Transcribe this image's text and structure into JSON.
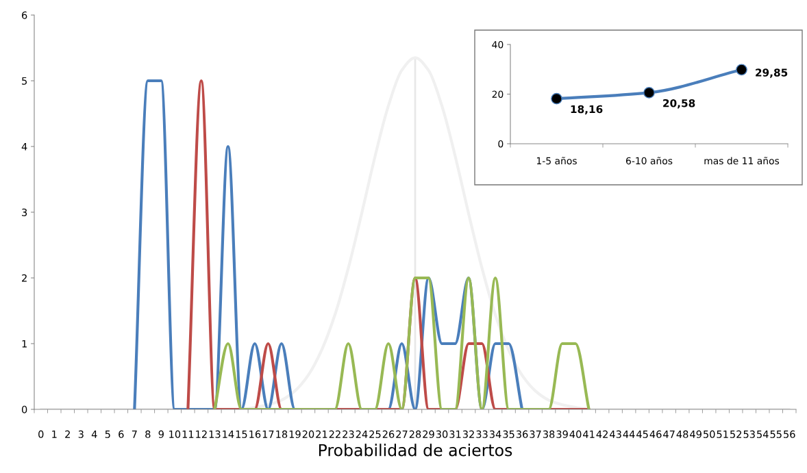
{
  "chart_data": [
    {
      "type": "line",
      "xlabel": "Probabilidad de aciertos",
      "categories": [
        "0",
        "1",
        "2",
        "3",
        "4",
        "5",
        "6",
        "7",
        "8",
        "9",
        "10",
        "11",
        "12",
        "13",
        "14",
        "15",
        "16",
        "17",
        "18",
        "19",
        "20",
        "21",
        "22",
        "23",
        "24",
        "25",
        "26",
        "27",
        "28",
        "29",
        "30",
        "31",
        "32",
        "33",
        "34",
        "35",
        "36",
        "37",
        "38",
        "39",
        "40",
        "41",
        "42",
        "43",
        "44",
        "45",
        "46",
        "47",
        "48",
        "49",
        "50",
        "51",
        "52",
        "53",
        "54",
        "55",
        "56"
      ],
      "ylim": [
        0,
        6
      ],
      "yticks": [
        0,
        1,
        2,
        3,
        4,
        5,
        6
      ],
      "grid": false,
      "legend": false,
      "series": [
        {
          "color": "#f0f0f0",
          "values": [
            0,
            0,
            0,
            0,
            0,
            0,
            0,
            0,
            0,
            0,
            0,
            0,
            0,
            0,
            0,
            0,
            0.03,
            0.07,
            0.14,
            0.28,
            0.52,
            0.9,
            1.44,
            2.15,
            2.98,
            3.85,
            4.62,
            5.16,
            5.35,
            5.16,
            4.62,
            3.85,
            2.98,
            2.15,
            1.44,
            0.9,
            0.52,
            0.28,
            0.14,
            0.07,
            0.03,
            0,
            0,
            0,
            0,
            0,
            0,
            0,
            0,
            0,
            0,
            0,
            0,
            0,
            0,
            0,
            0
          ]
        },
        {
          "color": "#4a7ebb",
          "values": [
            null,
            null,
            null,
            null,
            null,
            null,
            null,
            0,
            5,
            5,
            0,
            0,
            0,
            0,
            4,
            0,
            1,
            0,
            1,
            0,
            0,
            0,
            0,
            0,
            0,
            0,
            0,
            1,
            0,
            2,
            1,
            1,
            2,
            0,
            1,
            1,
            0,
            null,
            null,
            null,
            null,
            null,
            null,
            null,
            null,
            null,
            null,
            null,
            null,
            null,
            null,
            null,
            null,
            null,
            null,
            null,
            null
          ]
        },
        {
          "color": "#be4b48",
          "values": [
            null,
            null,
            null,
            null,
            null,
            null,
            null,
            null,
            null,
            null,
            null,
            0,
            5,
            0,
            0,
            0,
            0,
            1,
            0,
            0,
            0,
            0,
            0,
            0,
            0,
            0,
            0,
            0,
            2,
            0,
            0,
            0,
            1,
            1,
            0,
            0,
            0,
            0,
            0,
            0,
            0,
            0,
            null,
            null,
            null,
            null,
            null,
            null,
            null,
            null,
            null,
            null,
            null,
            null,
            null,
            null,
            null
          ]
        },
        {
          "color": "#98b954",
          "values": [
            null,
            null,
            null,
            null,
            null,
            null,
            null,
            null,
            null,
            null,
            null,
            null,
            null,
            0,
            1,
            0,
            0,
            0,
            0,
            0,
            0,
            0,
            0,
            1,
            0,
            0,
            1,
            0,
            2,
            2,
            0,
            0,
            2,
            0,
            2,
            0,
            0,
            0,
            0,
            1,
            1,
            0,
            null,
            null,
            null,
            null,
            null,
            null,
            null,
            null,
            null,
            null,
            null,
            null,
            null,
            null,
            null
          ]
        }
      ],
      "ref_lines": [
        {
          "axis": "x",
          "value": "28",
          "color": "#e8e8e8"
        }
      ]
    },
    {
      "type": "line",
      "categories": [
        "1-5 años",
        "6-10 años",
        "mas de 11 años"
      ],
      "ylim": [
        0,
        40
      ],
      "yticks": [
        0,
        20,
        40
      ],
      "grid": false,
      "legend": false,
      "marker": "circle",
      "series": [
        {
          "color": "#4a7ebb",
          "values": [
            18.16,
            20.58,
            29.85
          ],
          "value_labels": [
            "18,16",
            "20,58",
            "29,85"
          ]
        }
      ]
    }
  ]
}
